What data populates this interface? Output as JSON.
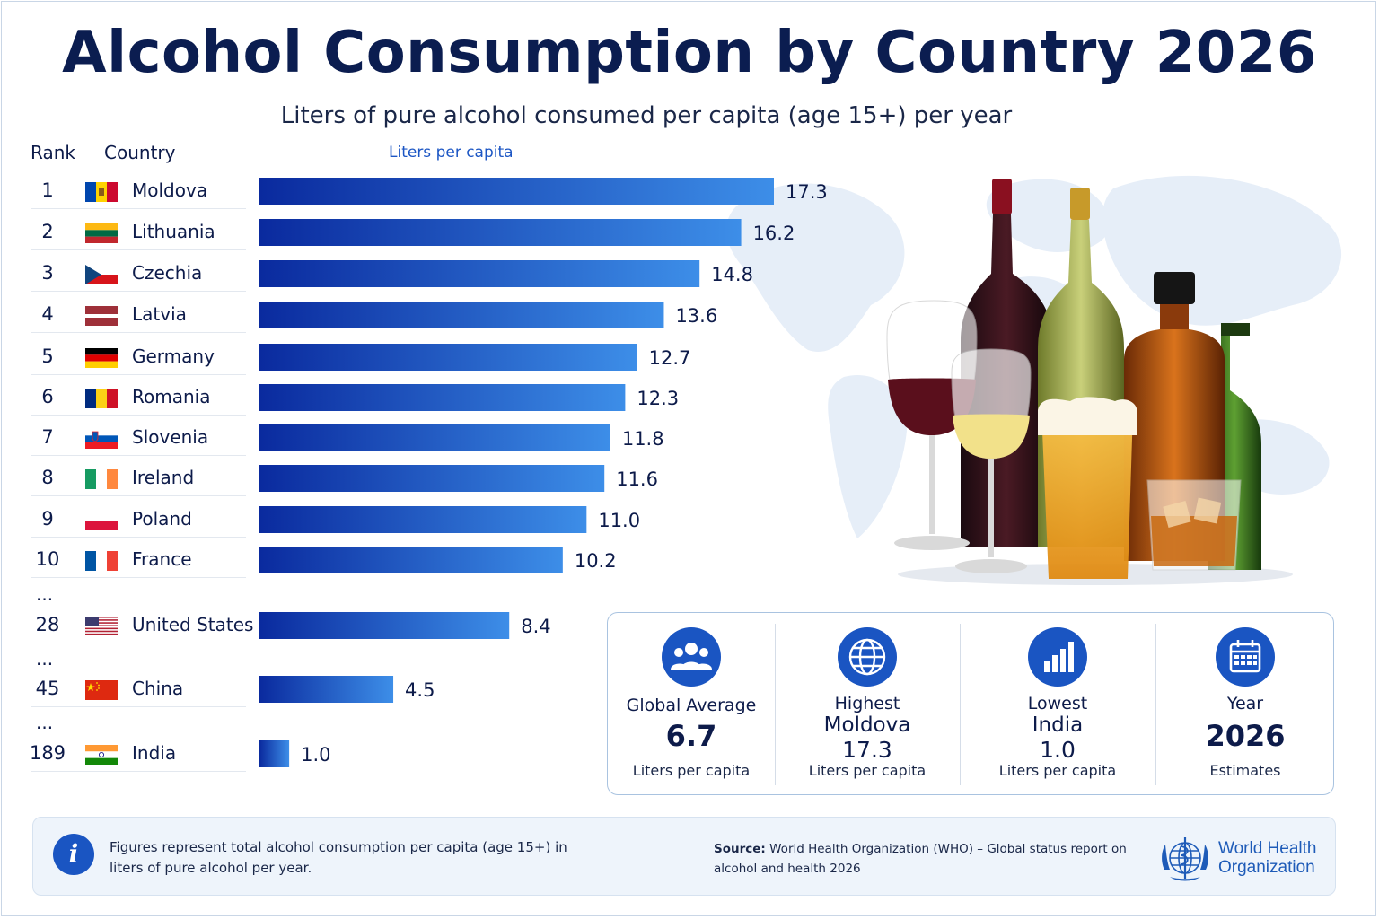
{
  "title": "Alcohol Consumption by Country 2026",
  "subtitle": "Liters of pure alcohol consumed per capita (age 15+) per year",
  "headers": {
    "rank": "Rank",
    "country": "Country",
    "liters": "Liters per capita"
  },
  "ellipsis": "...",
  "colors": {
    "bar_start": "#0a2a9e",
    "bar_end": "#3d8ee8",
    "accent": "#1a55c2",
    "title": "#0b1d50"
  },
  "chart_data": {
    "type": "bar",
    "orientation": "horizontal",
    "title": "Alcohol Consumption by Country 2026",
    "subtitle": "Liters of pure alcohol consumed per capita (age 15+) per year",
    "xlabel": "Liters per capita",
    "xlim": [
      0,
      17.3
    ],
    "grid": false,
    "rows": [
      {
        "rank": "1",
        "country": "Moldova",
        "value": 17.3,
        "label": "17.3",
        "flag": "moldova-flag"
      },
      {
        "rank": "2",
        "country": "Lithuania",
        "value": 16.2,
        "label": "16.2",
        "flag": "lithuania-flag"
      },
      {
        "rank": "3",
        "country": "Czechia",
        "value": 14.8,
        "label": "14.8",
        "flag": "czechia-flag"
      },
      {
        "rank": "4",
        "country": "Latvia",
        "value": 13.6,
        "label": "13.6",
        "flag": "latvia-flag"
      },
      {
        "rank": "5",
        "country": "Germany",
        "value": 12.7,
        "label": "12.7",
        "flag": "germany-flag"
      },
      {
        "rank": "6",
        "country": "Romania",
        "value": 12.3,
        "label": "12.3",
        "flag": "romania-flag"
      },
      {
        "rank": "7",
        "country": "Slovenia",
        "value": 11.8,
        "label": "11.8",
        "flag": "slovenia-flag"
      },
      {
        "rank": "8",
        "country": "Ireland",
        "value": 11.6,
        "label": "11.6",
        "flag": "ireland-flag"
      },
      {
        "rank": "9",
        "country": "Poland",
        "value": 11.0,
        "label": "11.0",
        "flag": "poland-flag"
      },
      {
        "rank": "10",
        "country": "France",
        "value": 10.2,
        "label": "10.2",
        "flag": "france-flag"
      },
      {
        "rank": "28",
        "country": "United States",
        "value": 8.4,
        "label": "8.4",
        "flag": "usa-flag"
      },
      {
        "rank": "45",
        "country": "China",
        "value": 4.5,
        "label": "4.5",
        "flag": "china-flag"
      },
      {
        "rank": "189",
        "country": "India",
        "value": 1.0,
        "label": "1.0",
        "flag": "india-flag"
      }
    ]
  },
  "stats": [
    {
      "icon": "people-icon",
      "label": "Global Average",
      "value": "6.7",
      "caption": "Liters per capita"
    },
    {
      "icon": "globe-icon",
      "label": "Highest",
      "country": "Moldova",
      "value": "17.3",
      "caption": "Liters per capita"
    },
    {
      "icon": "bar-chart-icon",
      "label": "Lowest",
      "country": "India",
      "value": "1.0",
      "caption": "Liters per capita"
    },
    {
      "icon": "calendar-icon",
      "label": "Year",
      "value": "2026",
      "caption": "Estimates"
    }
  ],
  "note": {
    "text": "Figures represent total alcohol consumption per capita (age 15+) in liters of pure alcohol per year.",
    "source_label": "Source:",
    "source_text": "World Health Organization (WHO) – Global status report on alcohol and health 2026"
  },
  "who_logo": {
    "name_line1": "World Health",
    "name_line2": "Organization"
  }
}
